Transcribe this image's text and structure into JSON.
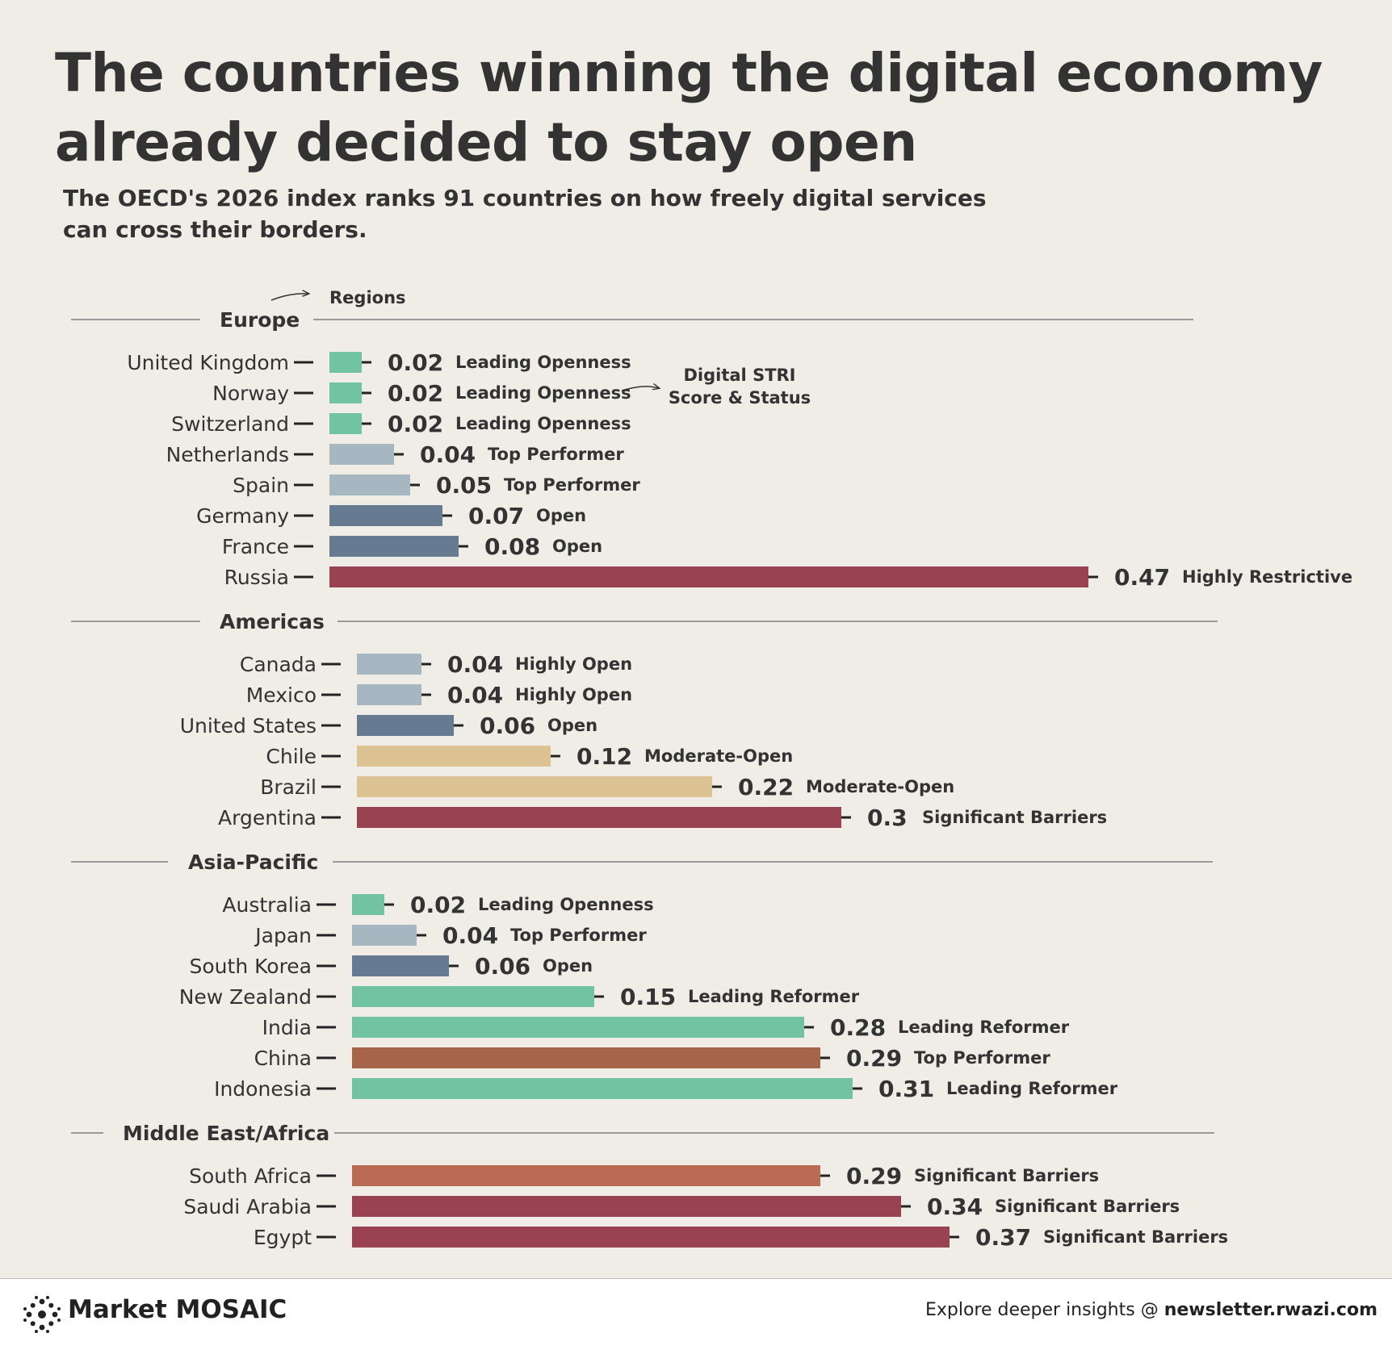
{
  "headline": "The countries winning the digital economy\nalready decided to stay open",
  "subtitle": "The OECD's 2026 index ranks 91 countries on how freely digital services can cross their borders.",
  "annotations": {
    "regions": "Regions",
    "score_status_line1": "Digital STRI",
    "score_status_line2": "Score & Status"
  },
  "colors": {
    "Leading Openness": "#72c3a1",
    "Top Performer": "#a6b7c2",
    "Highly Open": "#a6b7c2",
    "Open": "#667a92",
    "Moderate-Open": "#ddc294",
    "Highly Restrictive": "#994251",
    "Significant Barriers": "#994251",
    "Leading Reformer": "#72c3a1",
    "china": "#a6644a",
    "south_africa": "#b96b54"
  },
  "chart_data": {
    "type": "bar",
    "orientation": "horizontal",
    "title": "Digital STRI Score & Status",
    "xlabel": "Digital STRI Score",
    "xlim": [
      0,
      0.47
    ],
    "groups": [
      {
        "region": "Europe",
        "items": [
          {
            "country": "United Kingdom",
            "value": 0.02,
            "label": "0.02",
            "status": "Leading Openness"
          },
          {
            "country": "Norway",
            "value": 0.02,
            "label": "0.02",
            "status": "Leading Openness"
          },
          {
            "country": "Switzerland",
            "value": 0.02,
            "label": "0.02",
            "status": "Leading Openness"
          },
          {
            "country": "Netherlands",
            "value": 0.04,
            "label": "0.04",
            "status": "Top Performer"
          },
          {
            "country": "Spain",
            "value": 0.05,
            "label": "0.05",
            "status": "Top Performer"
          },
          {
            "country": "Germany",
            "value": 0.07,
            "label": "0.07",
            "status": "Open"
          },
          {
            "country": "France",
            "value": 0.08,
            "label": "0.08",
            "status": "Open"
          },
          {
            "country": "Russia",
            "value": 0.47,
            "label": "0.47",
            "status": "Highly Restrictive"
          }
        ]
      },
      {
        "region": "Americas",
        "items": [
          {
            "country": "Canada",
            "value": 0.04,
            "label": "0.04",
            "status": "Highly Open"
          },
          {
            "country": "Mexico",
            "value": 0.04,
            "label": "0.04",
            "status": "Highly Open"
          },
          {
            "country": "United States",
            "value": 0.06,
            "label": "0.06",
            "status": "Open"
          },
          {
            "country": "Chile",
            "value": 0.12,
            "label": "0.12",
            "status": "Moderate-Open"
          },
          {
            "country": "Brazil",
            "value": 0.22,
            "label": "0.22",
            "status": "Moderate-Open"
          },
          {
            "country": "Argentina",
            "value": 0.3,
            "label": "0.3",
            "status": "Significant Barriers"
          }
        ]
      },
      {
        "region": "Asia-Pacific",
        "items": [
          {
            "country": "Australia",
            "value": 0.02,
            "label": "0.02",
            "status": "Leading Openness"
          },
          {
            "country": "Japan",
            "value": 0.04,
            "label": "0.04",
            "status": "Top Performer"
          },
          {
            "country": "South Korea",
            "value": 0.06,
            "label": "0.06",
            "status": "Open"
          },
          {
            "country": "New Zealand",
            "value": 0.15,
            "label": "0.15",
            "status": "Leading Reformer"
          },
          {
            "country": "India",
            "value": 0.28,
            "label": "0.28",
            "status": "Leading Reformer"
          },
          {
            "country": "China",
            "value": 0.29,
            "label": "0.29",
            "status": "Top Performer",
            "color_key": "china"
          },
          {
            "country": "Indonesia",
            "value": 0.31,
            "label": "0.31",
            "status": "Leading Reformer"
          }
        ]
      },
      {
        "region": "Middle East/Africa",
        "items": [
          {
            "country": "South Africa",
            "value": 0.29,
            "label": "0.29",
            "status": "Significant Barriers",
            "color_key": "south_africa"
          },
          {
            "country": "Saudi Arabia",
            "value": 0.34,
            "label": "0.34",
            "status": "Significant Barriers"
          },
          {
            "country": "Egypt",
            "value": 0.37,
            "label": "0.37",
            "status": "Significant Barriers"
          }
        ]
      }
    ]
  },
  "footer": {
    "brand": "Market MOSAIC",
    "cta_prefix": "Explore deeper insights @",
    "cta_link": "newsletter.rwazi.com"
  }
}
